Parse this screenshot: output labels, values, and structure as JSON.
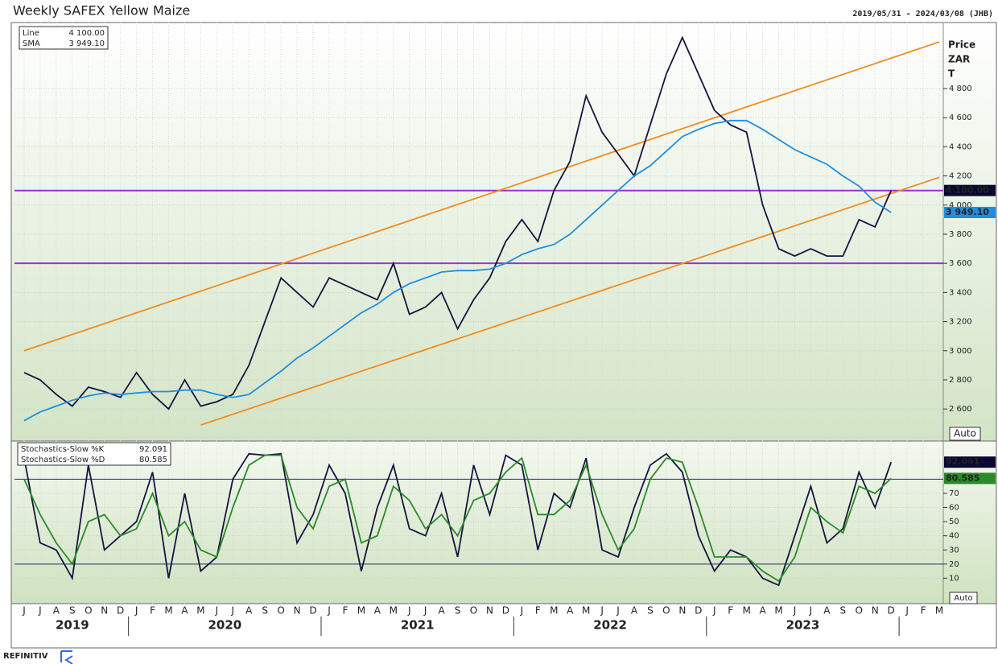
{
  "header": {
    "title": "Weekly SAFEX Yellow Maize",
    "date_range": "2019/05/31 - 2024/03/08 (JHB)"
  },
  "controls": [
    "Auto",
    "Auto"
  ],
  "footer": {
    "brand": "REFINITIV"
  },
  "chart_data": [
    {
      "type": "line",
      "y_axis_title": [
        "Price",
        "ZAR",
        "T"
      ],
      "ylim": [
        2380,
        5253
      ],
      "yticks": [
        {
          "value": 2600,
          "label": "2 600"
        },
        {
          "value": 2800,
          "label": "2 800"
        },
        {
          "value": 3000,
          "label": "3 000"
        },
        {
          "value": 3200,
          "label": "3 200"
        },
        {
          "value": 3400,
          "label": "3 400"
        },
        {
          "value": 3600,
          "label": "3 600"
        },
        {
          "value": 3800,
          "label": "3 800"
        },
        {
          "value": 4000,
          "label": "4 000"
        },
        {
          "value": 4200,
          "label": "4 200"
        },
        {
          "value": 4400,
          "label": "4 400"
        },
        {
          "value": 4600,
          "label": "4 600"
        },
        {
          "value": 4800,
          "label": "4 800"
        }
      ],
      "grid": true,
      "series": [
        {
          "name": "Line",
          "color": "#14143f",
          "last_label": "4 100.00",
          "values": [
            2850,
            2800,
            2700,
            2620,
            2750,
            2720,
            2680,
            2850,
            2700,
            2600,
            2800,
            2620,
            2650,
            2700,
            2900,
            3200,
            3500,
            3400,
            3300,
            3500,
            3450,
            3400,
            3350,
            3600,
            3250,
            3300,
            3400,
            3150,
            3350,
            3500,
            3750,
            3900,
            3750,
            4100,
            4300,
            4750,
            4500,
            4350,
            4200,
            4550,
            4900,
            5150,
            4900,
            4650,
            4550,
            4500,
            4000,
            3700,
            3650,
            3700,
            3650,
            3650,
            3900,
            3850,
            4100,
            null,
            null,
            null
          ]
        },
        {
          "name": "SMA",
          "color": "#1e8fe0",
          "last_label": "3 949.10",
          "values": [
            2520,
            2580,
            2620,
            2660,
            2690,
            2710,
            2700,
            2710,
            2720,
            2720,
            2730,
            2730,
            2700,
            2680,
            2700,
            2780,
            2860,
            2950,
            3020,
            3100,
            3180,
            3260,
            3320,
            3400,
            3460,
            3500,
            3540,
            3550,
            3550,
            3560,
            3600,
            3660,
            3700,
            3730,
            3800,
            3900,
            4000,
            4100,
            4200,
            4270,
            4370,
            4470,
            4520,
            4560,
            4580,
            4580,
            4520,
            4450,
            4380,
            4330,
            4280,
            4200,
            4130,
            4020,
            3949.1,
            null,
            null,
            null
          ]
        }
      ],
      "levels": [
        {
          "value": 4100,
          "color": "#9b30d9"
        },
        {
          "value": 3600,
          "color": "#9b30d9"
        }
      ],
      "trendlines": [
        {
          "color": "#f08c1e",
          "x": [
            0,
            57
          ],
          "values": [
            3000,
            5120
          ]
        },
        {
          "color": "#f08c1e",
          "x": [
            11,
            57
          ],
          "values": [
            2490,
            4190
          ]
        }
      ]
    },
    {
      "type": "line",
      "categories": [
        "J",
        "J",
        "A",
        "S",
        "O",
        "N",
        "D",
        "J",
        "F",
        "M",
        "A",
        "M",
        "J",
        "J",
        "A",
        "S",
        "O",
        "N",
        "D",
        "J",
        "F",
        "M",
        "A",
        "M",
        "J",
        "J",
        "A",
        "S",
        "O",
        "N",
        "D",
        "J",
        "F",
        "M",
        "A",
        "M",
        "J",
        "J",
        "A",
        "S",
        "O",
        "N",
        "D",
        "J",
        "F",
        "M",
        "A",
        "M",
        "J",
        "J",
        "A",
        "S",
        "O",
        "N",
        "D",
        "J",
        "F",
        "M"
      ],
      "years": [
        "2019",
        "2020",
        "2021",
        "2022",
        "2023"
      ],
      "ylim": [
        -8,
        107
      ],
      "yticks": [
        10,
        20,
        30,
        40,
        50,
        60,
        70
      ],
      "levels": [
        {
          "value": 20,
          "color": "#2a2a60"
        },
        {
          "value": 80,
          "color": "#2a2a60"
        }
      ],
      "series": [
        {
          "name": "Stochastics-Slow %K",
          "color": "#14143f",
          "values": [
            95,
            35,
            30,
            10,
            90,
            30,
            40,
            50,
            85,
            10,
            70,
            15,
            25,
            80,
            98,
            97,
            98,
            35,
            55,
            90,
            70,
            15,
            60,
            90,
            45,
            40,
            70,
            25,
            90,
            55,
            97,
            90,
            30,
            70,
            60,
            95,
            30,
            25,
            60,
            90,
            98,
            85,
            40,
            15,
            30,
            25,
            10,
            5,
            40,
            75,
            35,
            45,
            85,
            60,
            92.091,
            null,
            null,
            null
          ]
        },
        {
          "name": "Stochastics-Slow %D",
          "color": "#2a8a2a",
          "values": [
            80,
            55,
            35,
            20,
            50,
            55,
            40,
            45,
            70,
            40,
            50,
            30,
            25,
            60,
            90,
            97,
            97,
            60,
            45,
            75,
            80,
            35,
            40,
            75,
            65,
            45,
            55,
            40,
            65,
            70,
            85,
            95,
            55,
            55,
            65,
            90,
            55,
            30,
            45,
            80,
            95,
            92,
            60,
            25,
            25,
            25,
            15,
            8,
            25,
            60,
            50,
            42,
            75,
            70,
            80.585,
            null,
            null,
            null
          ]
        }
      ]
    }
  ]
}
